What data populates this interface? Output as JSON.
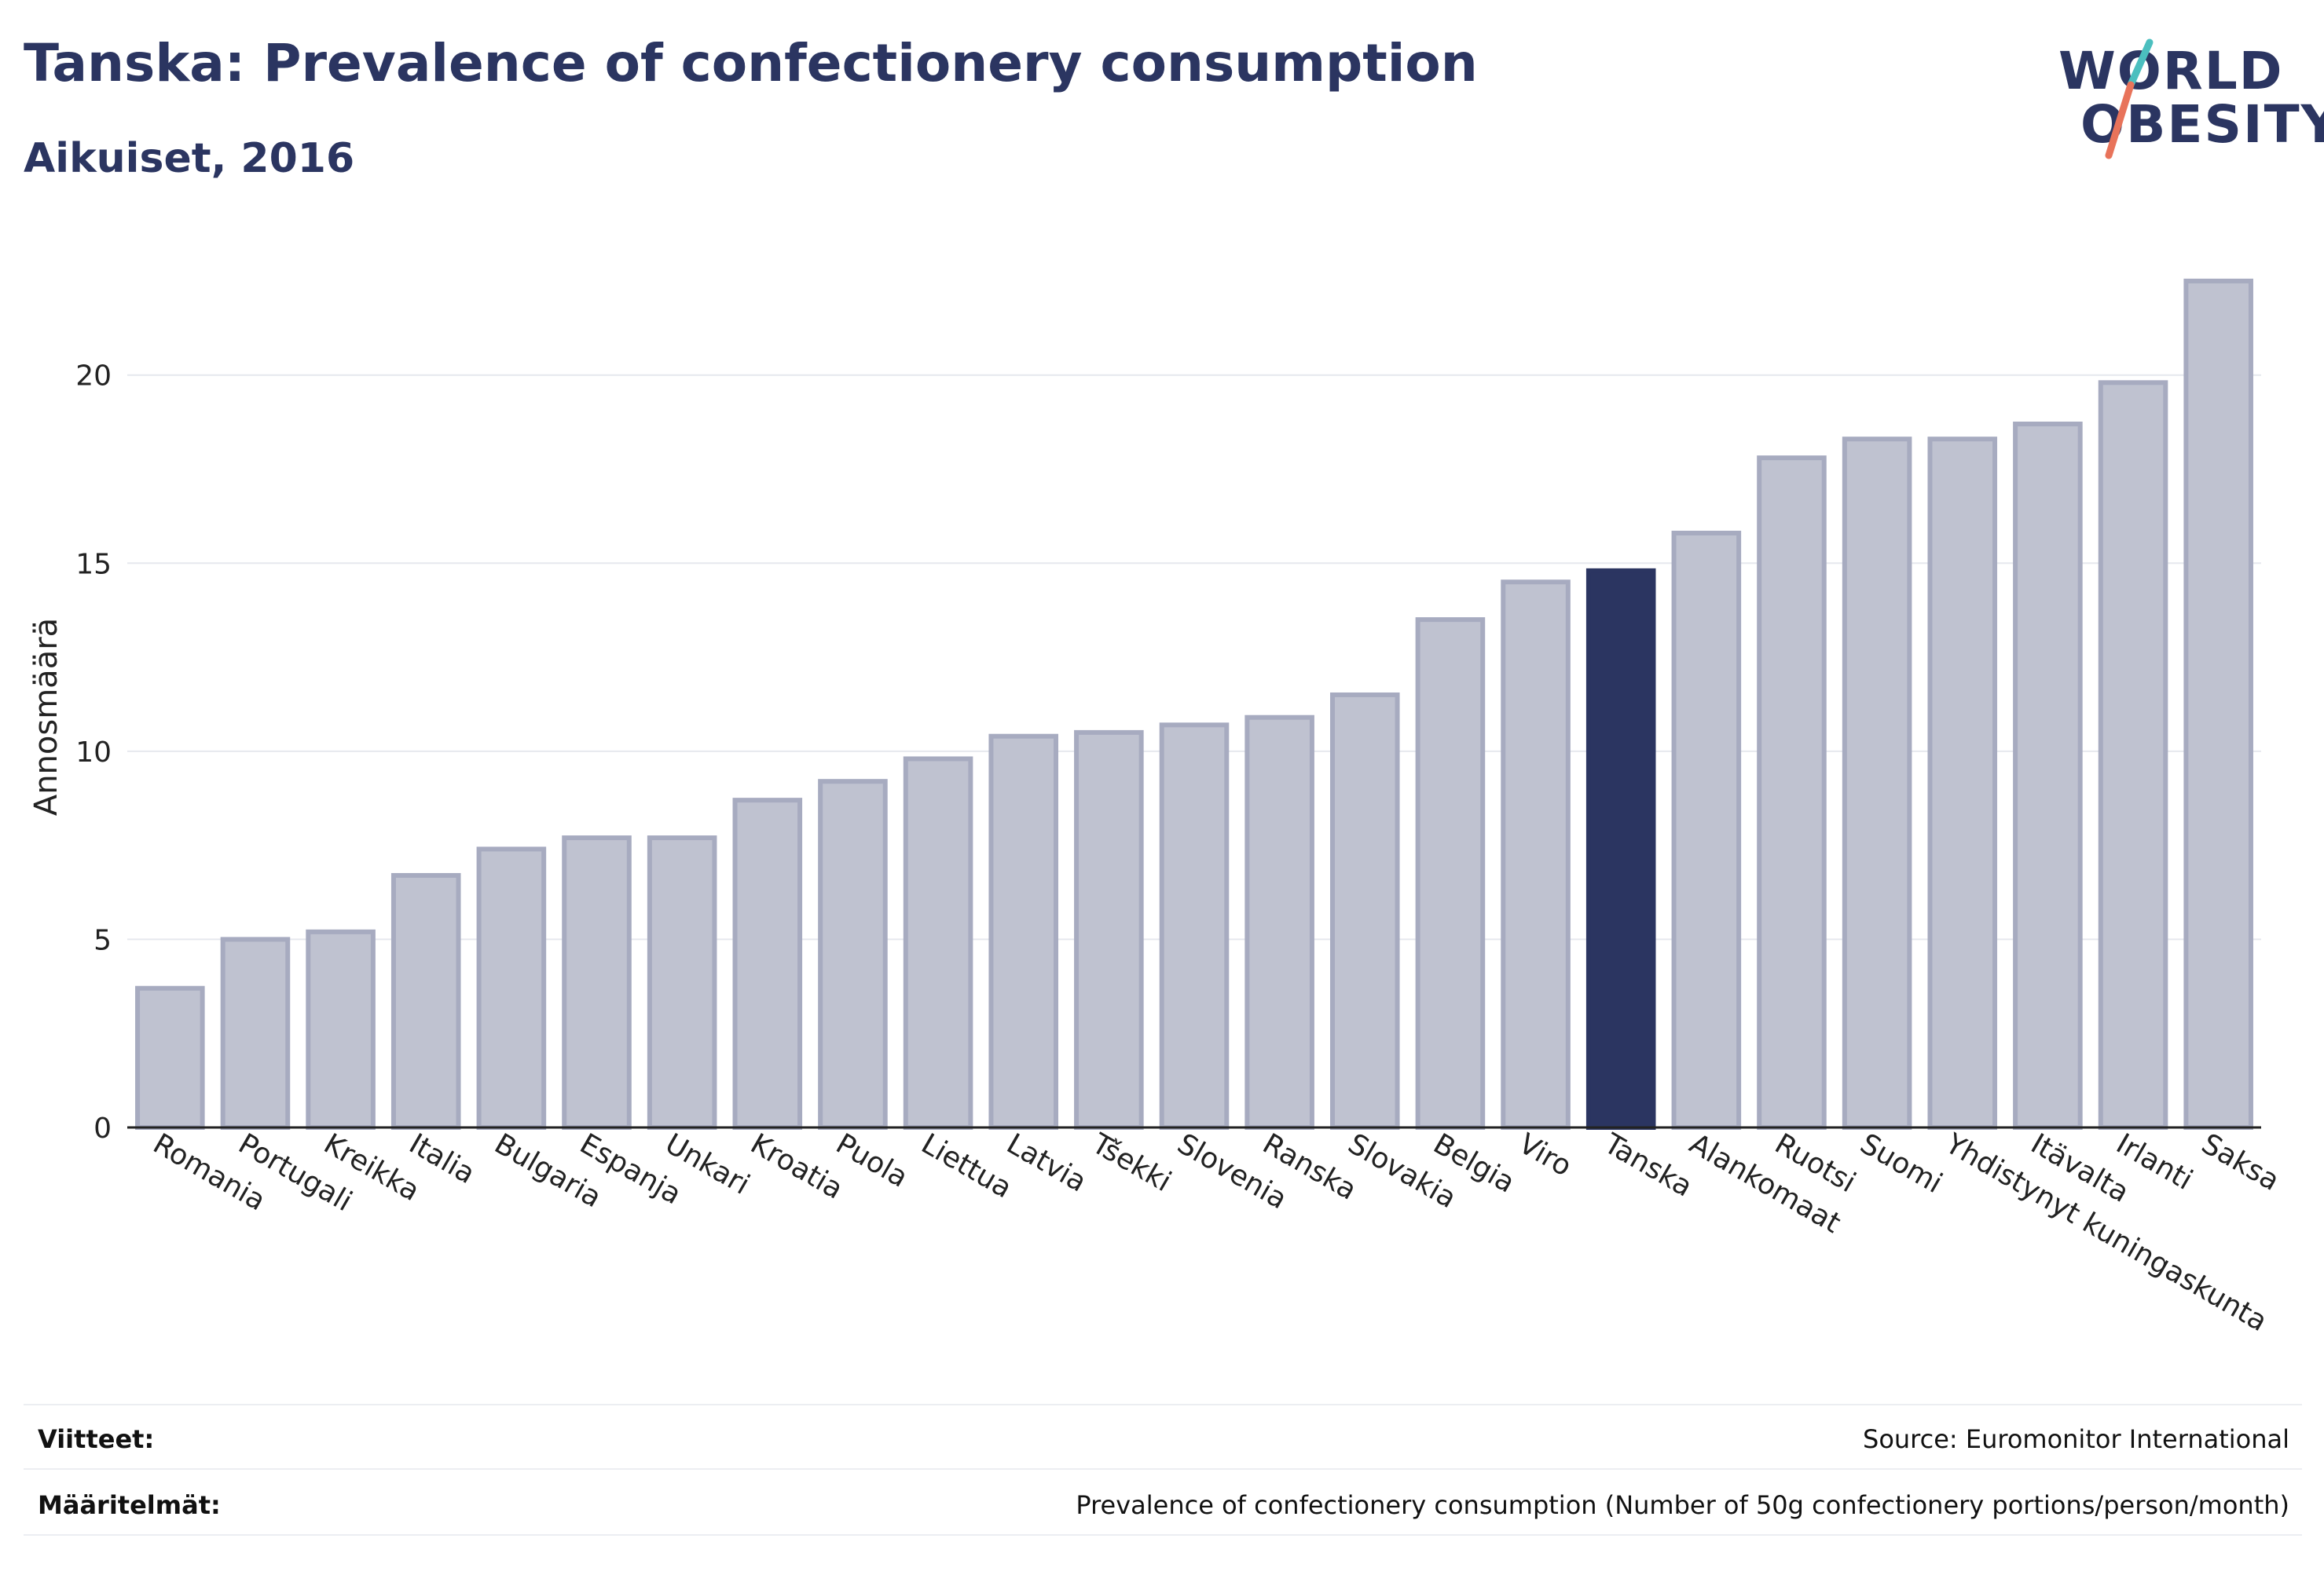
{
  "header": {
    "title": "Tanska: Prevalence of confectionery consumption",
    "subtitle": "Aikuiset, 2016"
  },
  "logo": {
    "line1": "WORLD",
    "line2": "OBESITY",
    "accent_colors": [
      "#4bbfbf",
      "#e8735a"
    ]
  },
  "colors": {
    "bar": "#bfc2d0",
    "bar_border": "#a7abc0",
    "highlight": "#2b3561",
    "grid": "#e6e8ee",
    "axis": "#222222"
  },
  "chart_data": {
    "type": "bar",
    "title": "Tanska: Prevalence of confectionery consumption",
    "subtitle": "Aikuiset, 2016",
    "xlabel": "",
    "ylabel": "Annosmäärä",
    "ylim": [
      0,
      23.5
    ],
    "yticks": [
      0,
      5,
      10,
      15,
      20
    ],
    "grid": true,
    "highlight": "Tanska",
    "categories": [
      "Romania",
      "Portugali",
      "Kreikka",
      "Italia",
      "Bulgaria",
      "Espanja",
      "Unkari",
      "Kroatia",
      "Puola",
      "Liettua",
      "Latvia",
      "Tšekki",
      "Slovenia",
      "Ranska",
      "Slovakia",
      "Belgia",
      "Viro",
      "Tanska",
      "Alankomaat",
      "Ruotsi",
      "Suomi",
      "Yhdistynyt kuningaskunta",
      "Itävalta",
      "Irlanti",
      "Saksa"
    ],
    "values": [
      3.7,
      5.0,
      5.2,
      6.7,
      7.4,
      7.7,
      7.7,
      8.7,
      9.2,
      9.8,
      10.4,
      10.5,
      10.7,
      10.9,
      11.5,
      13.5,
      14.5,
      14.8,
      15.8,
      17.8,
      18.3,
      18.3,
      18.7,
      19.8,
      22.5
    ]
  },
  "footer": {
    "references_label": "Viitteet:",
    "references_value": "Source: Euromonitor International",
    "definitions_label": "Määritelmät:",
    "definitions_value": "Prevalence of confectionery consumption (Number of 50g confectionery portions/person/month)"
  }
}
